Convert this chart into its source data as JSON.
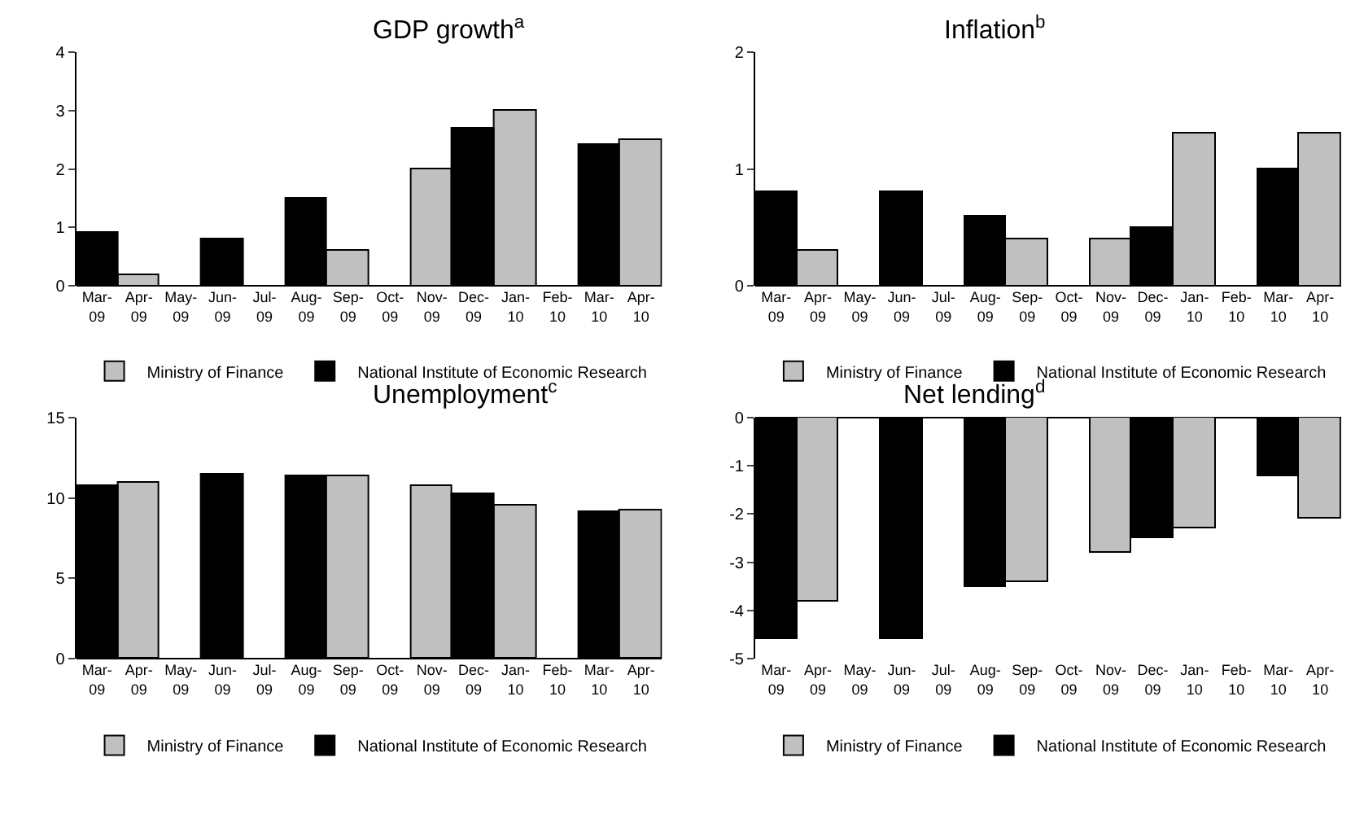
{
  "chart_data": [
    {
      "type": "bar",
      "title": "GDP growth$^{a}$",
      "categories": [
        "Mar-\n09",
        "Apr-\n09",
        "May-\n09",
        "Jun-\n09",
        "Jul-\n09",
        "Aug-\n09",
        "Sep-\n09",
        "Oct-\n09",
        "Nov-\n09",
        "Dec-\n09",
        "Jan-\n10",
        "Feb-\n10",
        "Mar-\n10",
        "Apr-\n10"
      ],
      "ylim": [
        0,
        4
      ],
      "yticks": [
        0,
        1,
        2,
        3,
        4
      ],
      "legend": "bottom",
      "series": [
        {
          "name": "Ministry of Finance",
          "color": "#c0c0c0",
          "values": [
            null,
            0.2,
            null,
            null,
            null,
            null,
            0.6,
            null,
            2.0,
            null,
            3.0,
            null,
            null,
            2.5
          ]
        },
        {
          "name": "National Institute of Economic Research",
          "color": "#000000",
          "values": [
            0.9,
            null,
            null,
            0.8,
            null,
            1.5,
            null,
            null,
            null,
            2.7,
            null,
            null,
            2.4,
            null
          ]
        }
      ]
    },
    {
      "type": "bar",
      "title": "Inflation$^{b}$",
      "categories": [
        "Mar-\n09",
        "Apr-\n09",
        "May-\n09",
        "Jun-\n09",
        "Jul-\n09",
        "Aug-\n09",
        "Sep-\n09",
        "Oct-\n09",
        "Nov-\n09",
        "Dec-\n09",
        "Jan-\n10",
        "Feb-\n10",
        "Mar-\n10",
        "Apr-\n10"
      ],
      "ylim": [
        0,
        2
      ],
      "yticks": [
        0,
        1,
        2
      ],
      "legend": "bottom",
      "series": [
        {
          "name": "Ministry of Finance",
          "color": "#c0c0c0",
          "values": [
            null,
            0.3,
            null,
            null,
            null,
            null,
            0.4,
            null,
            0.4,
            null,
            1.3,
            null,
            null,
            1.3
          ]
        },
        {
          "name": "National Institute of Economic Research",
          "color": "#000000",
          "values": [
            0.8,
            null,
            null,
            0.8,
            null,
            0.6,
            null,
            null,
            null,
            0.5,
            null,
            null,
            1.0,
            null
          ]
        }
      ]
    },
    {
      "type": "bar",
      "title": "Unemployment$^{c}$",
      "categories": [
        "Mar-\n09",
        "Apr-\n09",
        "May-\n09",
        "Jun-\n09",
        "Jul-\n09",
        "Aug-\n09",
        "Sep-\n09",
        "Oct-\n09",
        "Nov-\n09",
        "Dec-\n09",
        "Jan-\n10",
        "Feb-\n10",
        "Mar-\n10",
        "Apr-\n10"
      ],
      "ylim": [
        0,
        15
      ],
      "yticks": [
        0,
        5,
        10,
        15
      ],
      "legend": "bottom",
      "series": [
        {
          "name": "Ministry of Finance",
          "color": "#c0c0c0",
          "values": [
            null,
            11.0,
            null,
            null,
            null,
            null,
            11.4,
            null,
            10.7,
            null,
            9.5,
            null,
            null,
            9.2
          ]
        },
        {
          "name": "National Institute of Economic Research",
          "color": "#000000",
          "values": [
            10.7,
            null,
            null,
            11.5,
            null,
            11.4,
            null,
            null,
            null,
            10.2,
            null,
            null,
            9.1,
            null
          ]
        }
      ]
    },
    {
      "type": "bar",
      "title": "Net lending$^{d}$",
      "categories": [
        "Mar-\n09",
        "Apr-\n09",
        "May-\n09",
        "Jun-\n09",
        "Jul-\n09",
        "Aug-\n09",
        "Sep-\n09",
        "Oct-\n09",
        "Nov-\n09",
        "Dec-\n09",
        "Jan-\n10",
        "Feb-\n10",
        "Mar-\n10",
        "Apr-\n10"
      ],
      "ylim": [
        -5,
        0
      ],
      "yticks": [
        -5,
        -4,
        -3,
        -2,
        -1,
        0
      ],
      "legend": "bottom",
      "series": [
        {
          "name": "Ministry of Finance",
          "color": "#c0c0c0",
          "values": [
            null,
            -3.8,
            null,
            null,
            null,
            null,
            -3.4,
            null,
            -2.8,
            null,
            -2.3,
            null,
            null,
            -2.1
          ]
        },
        {
          "name": "National Institute of Economic Research",
          "color": "#000000",
          "values": [
            -4.6,
            null,
            null,
            -4.6,
            null,
            -3.5,
            null,
            null,
            null,
            -2.5,
            null,
            null,
            -1.2,
            null
          ]
        }
      ]
    }
  ]
}
